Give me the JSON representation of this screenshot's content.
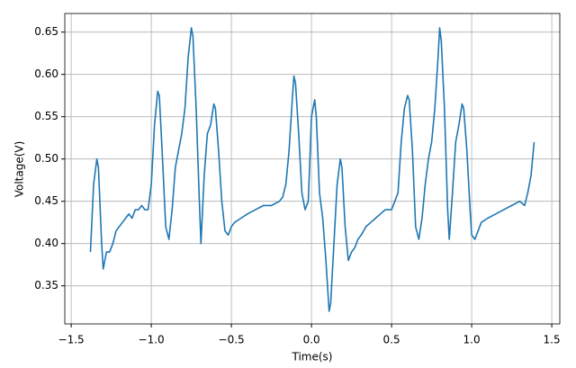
{
  "chart_data": {
    "type": "line",
    "xlabel": "Time(s)",
    "ylabel": "Voltage(V)",
    "grid": true,
    "xlim": [
      -1.54,
      1.55
    ],
    "ylim": [
      0.305,
      0.672
    ],
    "xticks": [
      {
        "value": -1.5,
        "label": "−1.5"
      },
      {
        "value": -1.0,
        "label": "−1.0"
      },
      {
        "value": -0.5,
        "label": "−0.5"
      },
      {
        "value": 0,
        "label": "0.0"
      },
      0.5,
      {
        "value": 1.0,
        "label": "1.0"
      },
      1.5
    ],
    "yticks": [
      {
        "value": 0.35,
        "label": "0.35"
      },
      {
        "value": 0.4,
        "label": "0.40"
      },
      {
        "value": 0.45,
        "label": "0.45"
      },
      {
        "value": 0.5,
        "label": "0.50"
      },
      {
        "value": 0.55,
        "label": "0.55"
      },
      {
        "value": 0.6,
        "label": "0.60"
      },
      {
        "value": 0.65,
        "label": "0.65"
      }
    ],
    "x": [
      -1.38,
      -1.36,
      -1.34,
      -1.33,
      -1.31,
      -1.3,
      -1.28,
      -1.26,
      -1.24,
      -1.22,
      -1.2,
      -1.18,
      -1.16,
      -1.14,
      -1.12,
      -1.1,
      -1.08,
      -1.06,
      -1.04,
      -1.02,
      -1.0,
      -0.98,
      -0.96,
      -0.95,
      -0.93,
      -0.91,
      -0.89,
      -0.87,
      -0.85,
      -0.83,
      -0.81,
      -0.79,
      -0.77,
      -0.75,
      -0.74,
      -0.72,
      -0.7,
      -0.69,
      -0.67,
      -0.65,
      -0.63,
      -0.61,
      -0.6,
      -0.58,
      -0.56,
      -0.54,
      -0.52,
      -0.5,
      -0.48,
      -0.44,
      -0.4,
      -0.35,
      -0.3,
      -0.25,
      -0.2,
      -0.18,
      -0.16,
      -0.14,
      -0.12,
      -0.11,
      -0.1,
      -0.08,
      -0.06,
      -0.04,
      -0.02,
      -0.01,
      0.0,
      0.02,
      0.03,
      0.05,
      0.07,
      0.09,
      0.11,
      0.12,
      0.14,
      0.16,
      0.18,
      0.19,
      0.21,
      0.23,
      0.25,
      0.27,
      0.29,
      0.31,
      0.34,
      0.37,
      0.4,
      0.43,
      0.46,
      0.48,
      0.5,
      0.52,
      0.54,
      0.56,
      0.58,
      0.6,
      0.61,
      0.63,
      0.65,
      0.67,
      0.69,
      0.71,
      0.73,
      0.75,
      0.77,
      0.79,
      0.8,
      0.81,
      0.83,
      0.85,
      0.86,
      0.88,
      0.9,
      0.92,
      0.94,
      0.95,
      0.97,
      0.99,
      1.0,
      1.02,
      1.04,
      1.06,
      1.1,
      1.15,
      1.2,
      1.25,
      1.3,
      1.33,
      1.35,
      1.37,
      1.39
    ],
    "series": [
      {
        "color": "#1f77b4",
        "values": [
          0.39,
          0.47,
          0.5,
          0.49,
          0.4,
          0.37,
          0.39,
          0.39,
          0.4,
          0.415,
          0.42,
          0.425,
          0.43,
          0.435,
          0.43,
          0.44,
          0.44,
          0.445,
          0.44,
          0.44,
          0.47,
          0.54,
          0.58,
          0.575,
          0.5,
          0.42,
          0.405,
          0.44,
          0.49,
          0.51,
          0.53,
          0.56,
          0.62,
          0.655,
          0.645,
          0.56,
          0.45,
          0.4,
          0.48,
          0.53,
          0.54,
          0.565,
          0.56,
          0.51,
          0.45,
          0.415,
          0.41,
          0.42,
          0.425,
          0.43,
          0.435,
          0.44,
          0.445,
          0.445,
          0.45,
          0.455,
          0.47,
          0.51,
          0.57,
          0.598,
          0.59,
          0.53,
          0.46,
          0.44,
          0.45,
          0.5,
          0.55,
          0.57,
          0.55,
          0.46,
          0.43,
          0.38,
          0.32,
          0.33,
          0.4,
          0.47,
          0.5,
          0.49,
          0.42,
          0.38,
          0.39,
          0.395,
          0.405,
          0.41,
          0.42,
          0.425,
          0.43,
          0.435,
          0.44,
          0.44,
          0.44,
          0.45,
          0.46,
          0.52,
          0.56,
          0.575,
          0.57,
          0.51,
          0.42,
          0.405,
          0.43,
          0.47,
          0.5,
          0.52,
          0.56,
          0.62,
          0.655,
          0.64,
          0.56,
          0.44,
          0.405,
          0.46,
          0.52,
          0.54,
          0.565,
          0.56,
          0.51,
          0.44,
          0.41,
          0.405,
          0.415,
          0.425,
          0.43,
          0.435,
          0.44,
          0.445,
          0.45,
          0.445,
          0.46,
          0.48,
          0.52
        ]
      }
    ]
  }
}
